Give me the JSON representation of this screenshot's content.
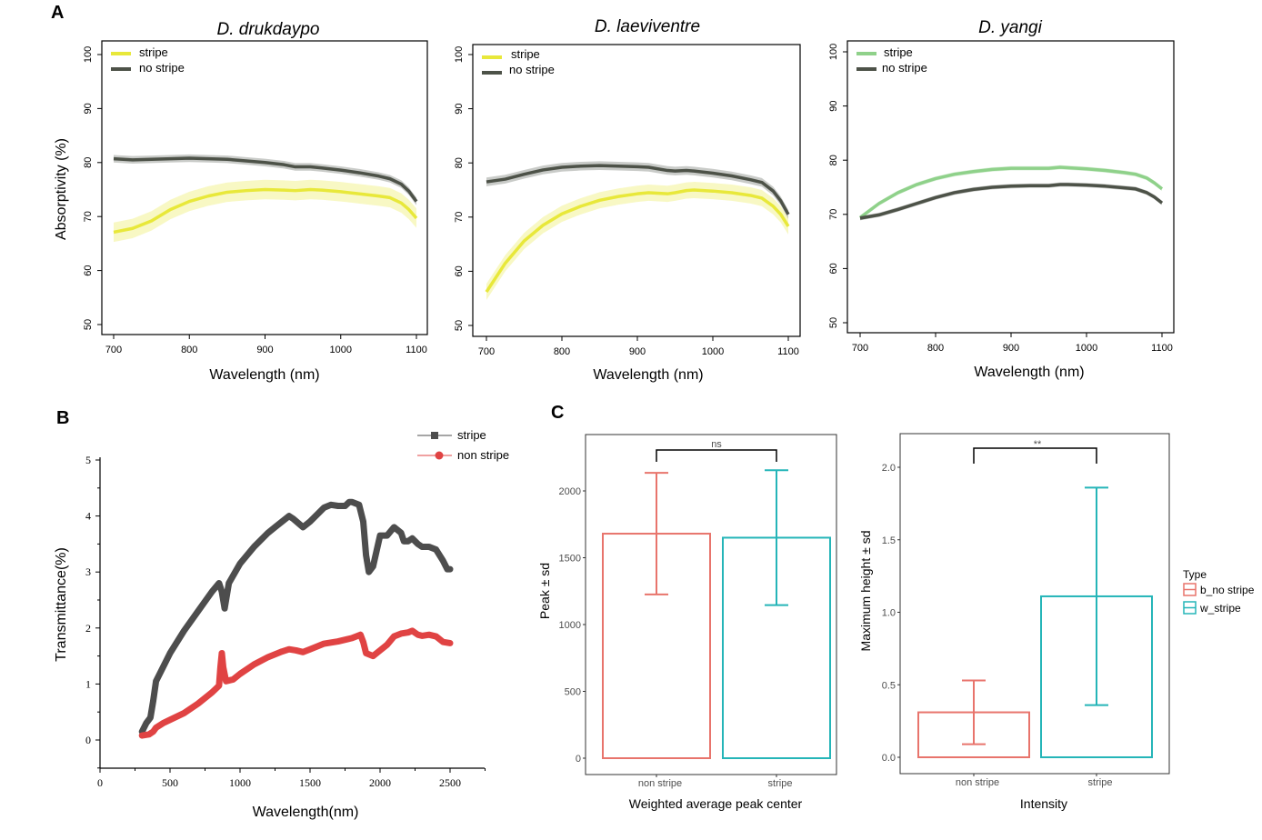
{
  "chart_data": [
    {
      "panel": "A",
      "type": "line",
      "title": "D. drukdaypo",
      "xlabel": "Wavelength (nm)",
      "ylabel": "Absorptivity (%)",
      "xlim": [
        700,
        1100
      ],
      "ylim": [
        50,
        100
      ],
      "xticks": [
        700,
        800,
        900,
        1000,
        1100
      ],
      "yticks": [
        50,
        60,
        70,
        80,
        90,
        100
      ],
      "legend": "top-left",
      "x": [
        700,
        725,
        750,
        775,
        800,
        825,
        850,
        875,
        900,
        925,
        940,
        960,
        975,
        1000,
        1025,
        1050,
        1065,
        1080,
        1090,
        1100
      ],
      "series": [
        {
          "name": "stripe",
          "color": "#e8e83a",
          "band": 1.8,
          "values": [
            67.1,
            67.8,
            69.2,
            71.3,
            72.8,
            73.8,
            74.5,
            74.8,
            75.0,
            74.9,
            74.8,
            75.0,
            74.9,
            74.6,
            74.2,
            73.8,
            73.5,
            72.5,
            71.3,
            69.7
          ]
        },
        {
          "name": "no stripe",
          "color": "#4d5248",
          "band": 0.7,
          "values": [
            80.7,
            80.5,
            80.6,
            80.7,
            80.8,
            80.7,
            80.6,
            80.3,
            80.0,
            79.6,
            79.2,
            79.2,
            79.0,
            78.6,
            78.1,
            77.5,
            77.0,
            76.0,
            74.7,
            72.8
          ]
        }
      ]
    },
    {
      "panel": "A",
      "type": "line",
      "title": "D. laeviventre",
      "xlabel": "Wavelength (nm)",
      "ylabel": "",
      "xlim": [
        700,
        1100
      ],
      "ylim": [
        50,
        100
      ],
      "xticks": [
        700,
        800,
        900,
        1000,
        1100
      ],
      "yticks": [
        50,
        60,
        70,
        80,
        90,
        100
      ],
      "legend": "top-left",
      "x": [
        700,
        725,
        750,
        775,
        800,
        825,
        850,
        875,
        900,
        915,
        940,
        950,
        965,
        975,
        1000,
        1025,
        1050,
        1065,
        1080,
        1090,
        1100
      ],
      "series": [
        {
          "name": "stripe",
          "color": "#e8e83a",
          "band": 1.5,
          "values": [
            56.2,
            61.5,
            65.6,
            68.5,
            70.6,
            72.0,
            73.1,
            73.8,
            74.3,
            74.5,
            74.3,
            74.5,
            74.9,
            75.0,
            74.8,
            74.5,
            74.0,
            73.5,
            72.0,
            70.5,
            68.3
          ]
        },
        {
          "name": "no stripe",
          "color": "#4d5248",
          "band": 0.8,
          "values": [
            76.5,
            77.0,
            77.9,
            78.7,
            79.2,
            79.4,
            79.5,
            79.4,
            79.3,
            79.2,
            78.6,
            78.5,
            78.6,
            78.5,
            78.1,
            77.6,
            76.9,
            76.4,
            74.8,
            73.0,
            70.5
          ]
        }
      ]
    },
    {
      "panel": "A",
      "type": "line",
      "title": "D. yangi",
      "xlabel": "Wavelength (nm)",
      "ylabel": "",
      "xlim": [
        700,
        1100
      ],
      "ylim": [
        50,
        100
      ],
      "xticks": [
        700,
        800,
        900,
        1000,
        1100
      ],
      "yticks": [
        50,
        60,
        70,
        80,
        90,
        100
      ],
      "legend": "top-left",
      "x": [
        700,
        725,
        750,
        775,
        800,
        825,
        850,
        875,
        900,
        925,
        950,
        965,
        975,
        1000,
        1025,
        1050,
        1065,
        1080,
        1090,
        1100
      ],
      "series": [
        {
          "name": "stripe",
          "color": "#8fd18a",
          "band": 0.4,
          "values": [
            69.4,
            72.0,
            74.0,
            75.5,
            76.6,
            77.4,
            77.9,
            78.3,
            78.5,
            78.5,
            78.5,
            78.7,
            78.6,
            78.4,
            78.1,
            77.7,
            77.4,
            76.7,
            75.8,
            74.7
          ]
        },
        {
          "name": "no stripe",
          "color": "#4d5248",
          "band": 0.4,
          "values": [
            69.3,
            69.9,
            70.9,
            72.0,
            73.1,
            74.0,
            74.6,
            75.0,
            75.2,
            75.3,
            75.3,
            75.5,
            75.5,
            75.4,
            75.2,
            74.9,
            74.7,
            74.0,
            73.2,
            72.1
          ]
        }
      ]
    },
    {
      "panel": "B",
      "type": "line",
      "title": "",
      "xlabel": "Wavelength(nm)",
      "ylabel": "Transmittance(%)",
      "xlim": [
        0,
        2750
      ],
      "ylim": [
        -0.5,
        5
      ],
      "xticks": [
        0,
        500,
        1000,
        1500,
        2000,
        2500
      ],
      "yticks": [
        0,
        1,
        2,
        3,
        4,
        5
      ],
      "legend": "top-right",
      "series": [
        {
          "name": "stripe",
          "color": "#4d4d4d",
          "marker": "square",
          "x": [
            300,
            330,
            360,
            380,
            400,
            450,
            500,
            600,
            700,
            800,
            850,
            870,
            890,
            920,
            1000,
            1100,
            1200,
            1250,
            1300,
            1350,
            1380,
            1450,
            1500,
            1600,
            1650,
            1700,
            1750,
            1780,
            1800,
            1850,
            1880,
            1900,
            1920,
            1950,
            2000,
            2050,
            2100,
            2150,
            2170,
            2200,
            2230,
            2270,
            2300,
            2350,
            2400,
            2450,
            2480,
            2500
          ],
          "y": [
            0.15,
            0.3,
            0.4,
            0.7,
            1.05,
            1.3,
            1.55,
            1.95,
            2.3,
            2.65,
            2.8,
            2.65,
            2.35,
            2.8,
            3.15,
            3.45,
            3.7,
            3.8,
            3.9,
            4.0,
            3.95,
            3.8,
            3.9,
            4.15,
            4.2,
            4.18,
            4.18,
            4.25,
            4.25,
            4.2,
            3.9,
            3.3,
            3.0,
            3.1,
            3.65,
            3.65,
            3.8,
            3.7,
            3.55,
            3.55,
            3.6,
            3.5,
            3.45,
            3.45,
            3.4,
            3.2,
            3.05,
            3.05
          ]
        },
        {
          "name": "non stripe",
          "color": "#e04343",
          "marker": "circle",
          "x": [
            300,
            350,
            380,
            400,
            450,
            500,
            600,
            700,
            800,
            850,
            860,
            870,
            880,
            900,
            950,
            1000,
            1100,
            1200,
            1300,
            1350,
            1400,
            1450,
            1500,
            1600,
            1700,
            1800,
            1860,
            1880,
            1900,
            1950,
            2000,
            2050,
            2100,
            2150,
            2200,
            2230,
            2270,
            2300,
            2350,
            2400,
            2450,
            2500
          ],
          "y": [
            0.08,
            0.1,
            0.15,
            0.22,
            0.3,
            0.36,
            0.48,
            0.65,
            0.85,
            0.97,
            1.3,
            1.55,
            1.3,
            1.05,
            1.08,
            1.18,
            1.35,
            1.48,
            1.58,
            1.62,
            1.6,
            1.57,
            1.62,
            1.72,
            1.76,
            1.82,
            1.88,
            1.75,
            1.55,
            1.5,
            1.6,
            1.7,
            1.85,
            1.9,
            1.92,
            1.95,
            1.88,
            1.86,
            1.88,
            1.85,
            1.75,
            1.73
          ]
        }
      ]
    },
    {
      "panel": "C",
      "type": "bar",
      "title": "",
      "xlabel": "Weighted average peak center",
      "ylabel": "Peak ± sd",
      "categories": [
        "non stripe",
        "stripe"
      ],
      "values": [
        1680,
        1650
      ],
      "sd": [
        455,
        505
      ],
      "colors": [
        "#e8746c",
        "#25b5b8"
      ],
      "ylim": [
        -80,
        2440
      ],
      "yticks": [
        0,
        500,
        1000,
        1500,
        2000
      ],
      "significance": "ns"
    },
    {
      "panel": "C",
      "type": "bar",
      "title": "",
      "xlabel": "Intensity",
      "ylabel": "Maximum height ± sd",
      "categories": [
        "non stripe",
        "stripe"
      ],
      "values": [
        0.31,
        1.11
      ],
      "sd": [
        0.22,
        0.75
      ],
      "colors": [
        "#e8746c",
        "#25b5b8"
      ],
      "ylim": [
        -0.105,
        2.23
      ],
      "yticks": [
        0.0,
        0.5,
        1.0,
        1.5,
        2.0
      ],
      "significance": "**",
      "legend_title": "Type",
      "legend": [
        "b_no stripe",
        "w_stripe"
      ]
    }
  ],
  "panel_labels": [
    "A",
    "B",
    "C"
  ]
}
